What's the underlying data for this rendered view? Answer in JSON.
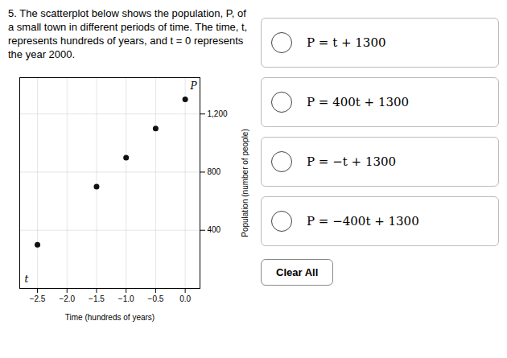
{
  "chart_data": {
    "type": "scatter",
    "title": "5.  The scatterplot below shows the population, P, of a small town in different periods of time. The time, t, represents hundreds of years, and t = 0 represents the year 2000.",
    "x": [
      -2.5,
      -1.5,
      -1.0,
      -0.5,
      0.0
    ],
    "values": [
      300,
      700,
      900,
      1100,
      1300
    ],
    "color": "#111111",
    "xlabel": "Time (hundreds of years)",
    "ylabel": "Population (number of people)",
    "xlim": [
      -2.8,
      0.25
    ],
    "ylim": [
      0,
      1450
    ],
    "xticks": [
      -2.5,
      -2.0,
      -1.5,
      -1.0,
      -0.5,
      0.0
    ],
    "yticks": [
      400,
      800,
      1200
    ],
    "grid": true,
    "annotations": [
      "P",
      "t",
      "P = t + 1300",
      "P = 400t + 1300",
      "P = −t + 1300",
      "P = −400t + 1300",
      "Clear All"
    ]
  }
}
